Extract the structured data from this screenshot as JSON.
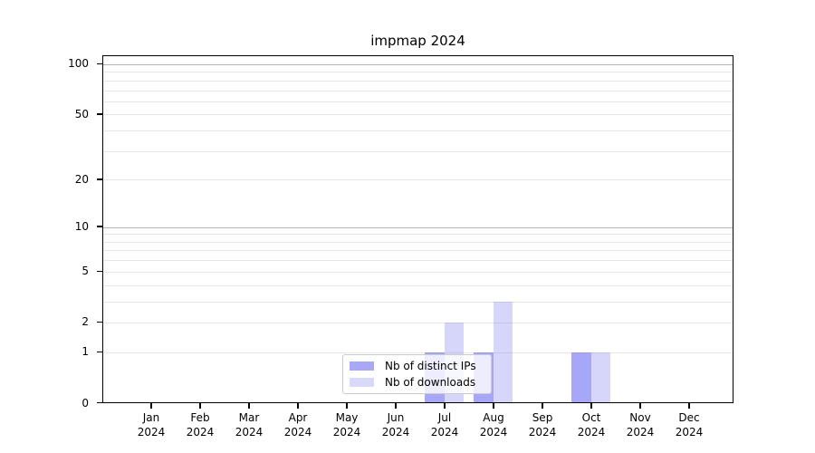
{
  "chart": {
    "title": "impmap 2024"
  },
  "chart_data": {
    "type": "bar",
    "title": "impmap 2024",
    "categories": [
      "Jan",
      "Feb",
      "Mar",
      "Apr",
      "May",
      "Jun",
      "Jul",
      "Aug",
      "Sep",
      "Oct",
      "Nov",
      "Dec"
    ],
    "x_sub_label": "2024",
    "series": [
      {
        "name": "Nb of distinct IPs",
        "color": "#a8a8f7",
        "fill": "rgba(80,80,240,0.5)",
        "values": [
          0,
          0,
          0,
          0,
          0,
          0,
          1,
          1,
          0,
          1,
          0,
          0
        ]
      },
      {
        "name": "Nb of downloads",
        "color": "#d9d9fa",
        "fill": "rgba(105,105,235,0.27)",
        "values": [
          0,
          0,
          0,
          0,
          0,
          0,
          2,
          3,
          0,
          1,
          0,
          0
        ]
      }
    ],
    "xlabel": "",
    "ylabel": "",
    "yscale": "log1p",
    "ylim": [
      0,
      113
    ],
    "yticks_labeled": [
      0,
      1,
      2,
      5,
      10,
      20,
      50,
      100
    ],
    "yticks_minor": [
      3,
      4,
      6,
      7,
      8,
      9,
      30,
      40,
      60,
      70,
      80,
      90
    ],
    "major_gridlines": [
      10,
      100
    ],
    "grid": true,
    "legend_position": "lower center",
    "colors": {
      "major_grid": "#b3b3b3",
      "minor_grid": "#e7e7e7",
      "axis": "#000000"
    }
  }
}
